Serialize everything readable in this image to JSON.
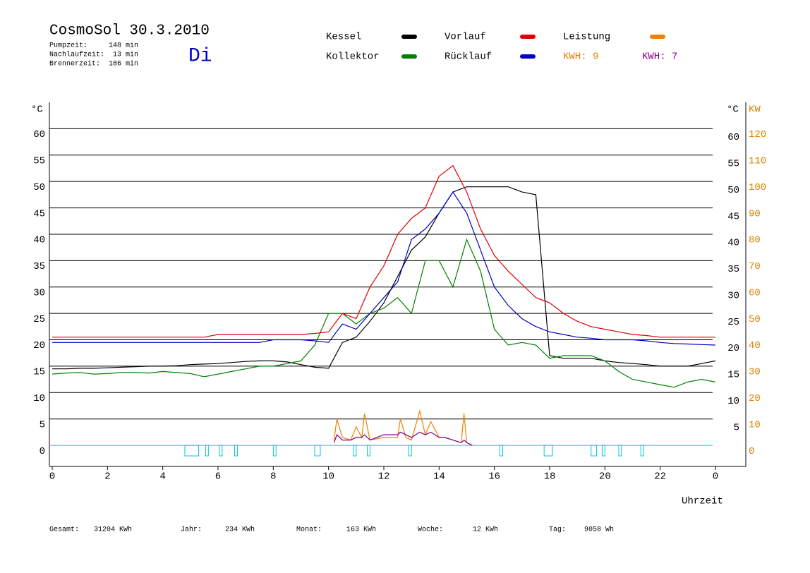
{
  "chart_data": {
    "type": "line",
    "title": "CosmoSol 30.3.2010",
    "info": [
      "Pumpzeit:     148 min",
      "Nachlaufzeit:  13 min",
      "Brennerzeit:  186 min"
    ],
    "weekday": "Di",
    "kwh_labels": [
      {
        "text": "KWH: 9",
        "color": "#e08000"
      },
      {
        "text": "KWH: 7",
        "color": "#800080"
      }
    ],
    "y_unit": "°C",
    "y2_unit": "KW",
    "x_label": "Uhrzeit",
    "xlim": [
      0,
      24
    ],
    "xticks": [
      0,
      2,
      4,
      6,
      8,
      10,
      12,
      14,
      16,
      18,
      20,
      22,
      {
        "value": 24,
        "label": "0"
      }
    ],
    "ylim": [
      -4,
      65
    ],
    "yticks": [
      0,
      5,
      10,
      15,
      20,
      25,
      30,
      35,
      40,
      45,
      50,
      55,
      60
    ],
    "y_right_ticks": [
      5,
      10,
      15,
      20,
      25,
      30,
      35,
      40,
      45,
      50,
      55,
      60
    ],
    "y2lim": [
      -8,
      130
    ],
    "y2ticks": [
      0,
      10,
      20,
      30,
      40,
      50,
      60,
      70,
      80,
      90,
      100,
      110,
      120
    ],
    "grid": true,
    "series": [
      {
        "name": "Kessel",
        "color": "#000000",
        "x": [
          0,
          0.5,
          1,
          1.5,
          2,
          2.5,
          3,
          3.5,
          4,
          4.5,
          5,
          5.5,
          6,
          6.5,
          7,
          7.5,
          8,
          8.5,
          9,
          9.5,
          10,
          10.5,
          11,
          11.5,
          12,
          12.5,
          13,
          13.5,
          14,
          14.5,
          15,
          15.5,
          16,
          16.5,
          17,
          17.5,
          18,
          18.5,
          19,
          19.5,
          20,
          20.5,
          21,
          21.5,
          22,
          22.5,
          23,
          23.5,
          24
        ],
        "values": [
          14.5,
          14.5,
          14.6,
          14.6,
          14.7,
          14.8,
          14.9,
          15,
          15,
          15.1,
          15.3,
          15.4,
          15.5,
          15.7,
          15.9,
          16,
          16,
          15.8,
          15.3,
          14.8,
          14.6,
          19.5,
          20.5,
          23.5,
          27,
          32,
          37,
          39.5,
          44,
          48,
          49,
          49,
          49,
          49,
          48,
          47.5,
          17,
          16.5,
          16.5,
          16.5,
          16,
          15.7,
          15.5,
          15.3,
          15,
          15,
          15,
          15.5,
          16
        ]
      },
      {
        "name": "Kollektor",
        "color": "#008000",
        "x": [
          0,
          0.5,
          1,
          1.5,
          2,
          2.5,
          3,
          3.5,
          4,
          4.5,
          5,
          5.5,
          6,
          6.5,
          7,
          7.5,
          8,
          8.5,
          9,
          9.5,
          10,
          10.5,
          11,
          11.5,
          12,
          12.5,
          13,
          13.5,
          14,
          14.5,
          15,
          15.5,
          16,
          16.5,
          17,
          17.5,
          18,
          18.5,
          19,
          19.5,
          20,
          20.5,
          21,
          21.5,
          22,
          22.5,
          23,
          23.5,
          24
        ],
        "values": [
          13.5,
          13.7,
          13.8,
          13.5,
          13.6,
          13.8,
          13.8,
          13.7,
          14,
          13.8,
          13.6,
          13,
          13.5,
          14,
          14.5,
          15,
          15,
          15.5,
          16,
          19,
          25,
          25,
          23,
          25,
          26,
          28,
          25,
          35,
          35,
          30,
          39,
          33,
          22,
          19,
          19.5,
          19,
          16.5,
          17,
          17,
          17,
          16,
          14,
          12.5,
          12,
          11.5,
          11,
          12,
          12.5,
          12
        ]
      },
      {
        "name": "Vorlauf",
        "color": "#e00000",
        "x": [
          0,
          0.5,
          1,
          1.5,
          2,
          2.5,
          3,
          3.5,
          4,
          4.5,
          5,
          5.5,
          6,
          6.5,
          7,
          7.5,
          8,
          8.5,
          9,
          9.5,
          10,
          10.5,
          11,
          11.5,
          12,
          12.5,
          13,
          13.5,
          14,
          14.5,
          15,
          15.5,
          16,
          16.5,
          17,
          17.5,
          18,
          18.5,
          19,
          19.5,
          20,
          20.5,
          21,
          21.5,
          22,
          22.5,
          23,
          23.5,
          24
        ],
        "values": [
          20.5,
          20.5,
          20.5,
          20.5,
          20.5,
          20.5,
          20.5,
          20.5,
          20.5,
          20.5,
          20.5,
          20.5,
          21,
          21,
          21,
          21,
          21,
          21,
          21,
          21.2,
          21.5,
          25,
          24,
          30,
          34,
          40,
          43,
          45,
          51,
          53,
          48,
          41,
          36,
          33,
          30.5,
          28,
          27,
          25,
          23.5,
          22.5,
          22,
          21.5,
          21,
          20.8,
          20.5,
          20.5,
          20.5,
          20.5,
          20.5
        ]
      },
      {
        "name": "Rücklauf",
        "color": "#0000c0",
        "x": [
          0,
          0.5,
          1,
          1.5,
          2,
          2.5,
          3,
          3.5,
          4,
          4.5,
          5,
          5.5,
          6,
          6.5,
          7,
          7.5,
          8,
          8.5,
          9,
          9.5,
          10,
          10.5,
          11,
          11.5,
          12,
          12.5,
          13,
          13.5,
          14,
          14.5,
          15,
          15.5,
          16,
          16.5,
          17,
          17.5,
          18,
          18.5,
          19,
          19.5,
          20,
          20.5,
          21,
          21.5,
          22,
          22.5,
          23,
          23.5,
          24
        ],
        "values": [
          19.5,
          19.5,
          19.5,
          19.5,
          19.5,
          19.5,
          19.5,
          19.5,
          19.5,
          19.5,
          19.5,
          19.5,
          19.5,
          19.5,
          19.5,
          19.5,
          20,
          20,
          20,
          19.8,
          19.5,
          23,
          22,
          25,
          28,
          31,
          39,
          41,
          44,
          48,
          44,
          37,
          30,
          26.5,
          24,
          22.5,
          21.5,
          21,
          20.5,
          20.3,
          20,
          20,
          20,
          19.8,
          19.5,
          19.3,
          19.2,
          19.1,
          19
        ]
      },
      {
        "name": "Leistung",
        "color": "#f08000",
        "axis": "y2",
        "x": [
          10.2,
          10.3,
          10.5,
          10.8,
          11,
          11.2,
          11.3,
          11.5,
          12,
          12.5,
          12.6,
          12.8,
          13,
          13.3,
          13.5,
          13.7,
          14,
          14.2,
          14.5,
          14.8,
          14.9,
          15,
          15.2
        ],
        "values": [
          2,
          10,
          3,
          2,
          7,
          3,
          12,
          2,
          3,
          3,
          10,
          3,
          2,
          13,
          4,
          9,
          3,
          3,
          2,
          1,
          12,
          1,
          0
        ]
      },
      {
        "color": "#800080",
        "axis": "y2",
        "x": [
          10.2,
          10.3,
          10.5,
          10.8,
          11,
          11.2,
          11.3,
          11.5,
          12,
          12.5,
          12.6,
          12.8,
          13,
          13.3,
          13.5,
          13.7,
          14,
          14.2,
          14.5,
          14.8,
          14.9,
          15,
          15.2
        ],
        "values": [
          1,
          4,
          2,
          2,
          3,
          3,
          4,
          2,
          4,
          4,
          5,
          4,
          3,
          5,
          4,
          5,
          3,
          3,
          2,
          1,
          2,
          1,
          0
        ]
      }
    ],
    "pump_intervals": [
      [
        4.8,
        5.3
      ],
      [
        5.55,
        5.65
      ],
      [
        6.05,
        6.15
      ],
      [
        6.6,
        6.7
      ],
      [
        8.0,
        8.1
      ],
      [
        9.5,
        9.7
      ],
      [
        10.9,
        11.0
      ],
      [
        11.4,
        11.5
      ],
      [
        12.9,
        13.0
      ],
      [
        16.2,
        16.3
      ],
      [
        17.8,
        18.1
      ],
      [
        19.5,
        19.7
      ],
      [
        19.9,
        20.0
      ],
      [
        20.5,
        20.6
      ],
      [
        21.3,
        21.4
      ]
    ],
    "footer": [
      [
        "Gesamt:",
        "31204 KWh"
      ],
      [
        "Jahr:",
        "234 KWh"
      ],
      [
        "Monat:",
        "163 KWh"
      ],
      [
        "Woche:",
        "12 KWh"
      ],
      [
        "Tag:",
        "9058 Wh"
      ]
    ]
  }
}
